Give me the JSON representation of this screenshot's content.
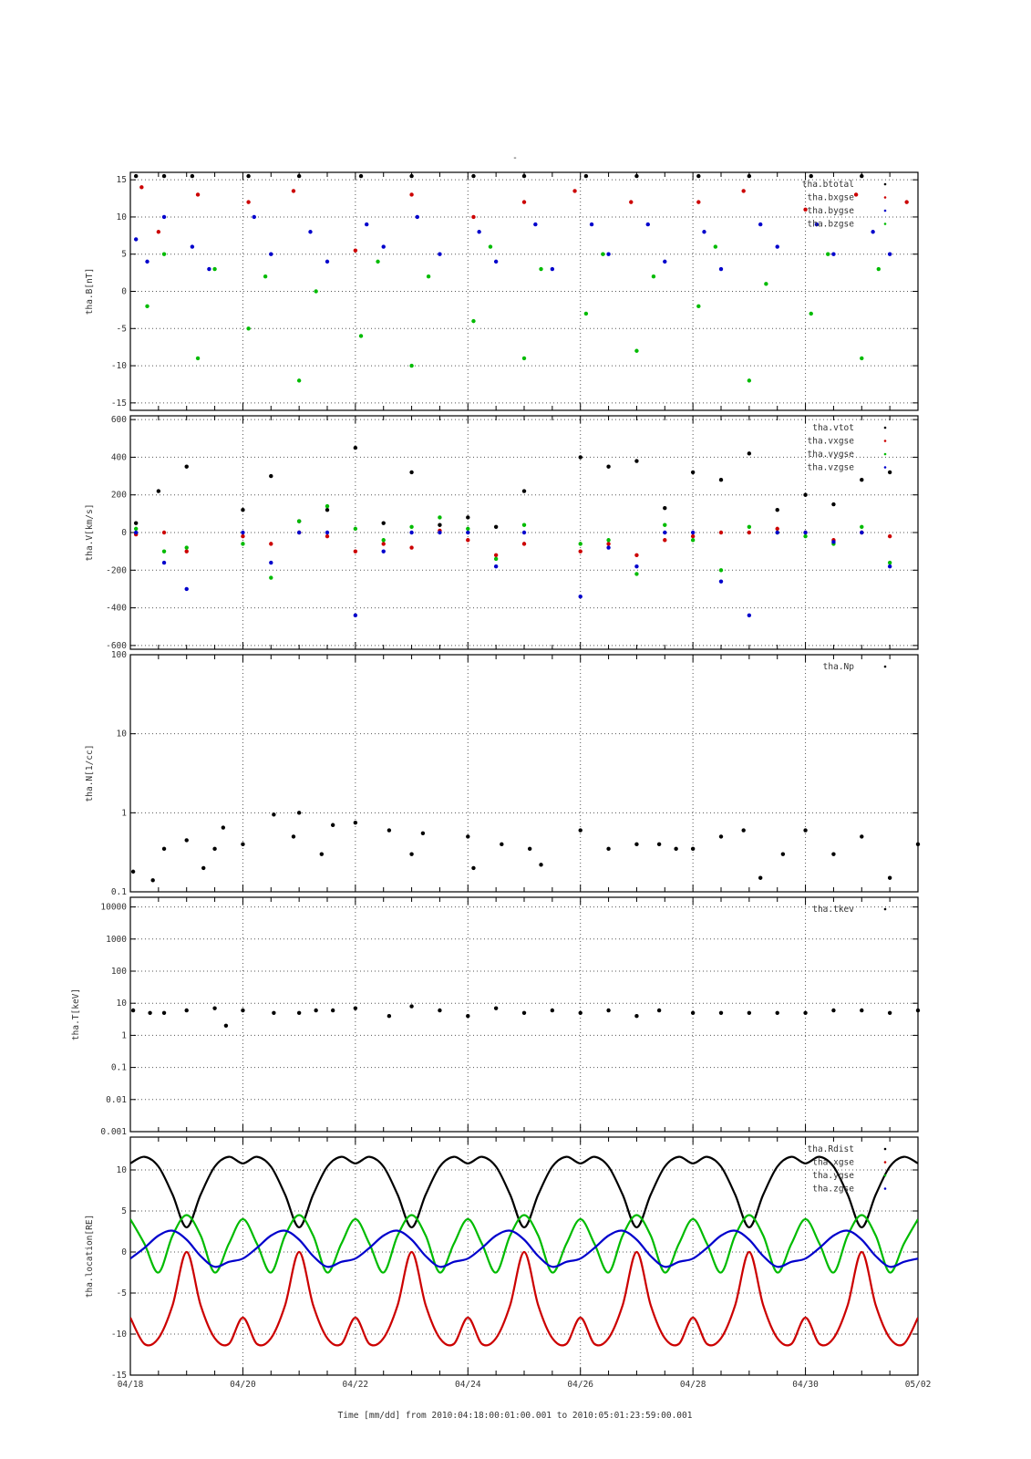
{
  "title": "-",
  "xaxis": {
    "label": "Time [mm/dd]  from 2010:04:18:00:01:00.001  to  2010:05:01:23:59:00.001",
    "range": [
      0,
      14
    ],
    "ticks": [
      {
        "v": 0,
        "label": "04/18"
      },
      {
        "v": 2,
        "label": "04/20"
      },
      {
        "v": 4,
        "label": "04/22"
      },
      {
        "v": 6,
        "label": "04/24"
      },
      {
        "v": 8,
        "label": "04/26"
      },
      {
        "v": 10,
        "label": "04/28"
      },
      {
        "v": 12,
        "label": "04/30"
      },
      {
        "v": 14,
        "label": "05/02"
      }
    ]
  },
  "chart_data": [
    {
      "type": "scatter",
      "ylabel": "tha.B[nT]",
      "ylim": [
        -16,
        16
      ],
      "scale": "linear",
      "yticks": [
        15,
        10,
        5,
        0,
        -5,
        -10,
        -15
      ],
      "legend_position": "top-right",
      "series": [
        {
          "name": "tha.btotal",
          "color": "#000000",
          "x": [
            0.1,
            0.6,
            1.1,
            2.1,
            3.0,
            4.1,
            5.0,
            6.1,
            7.0,
            8.1,
            9.0,
            10.1,
            11.0,
            12.1,
            13.0
          ],
          "y": [
            15.5,
            15.5,
            15.5,
            15.5,
            15.5,
            15.5,
            15.5,
            15.5,
            15.5,
            15.5,
            15.5,
            15.5,
            15.5,
            15.5,
            15.5
          ]
        },
        {
          "name": "tha.bxgse",
          "color": "#cc0000",
          "x": [
            0.2,
            0.5,
            1.2,
            2.1,
            2.9,
            4.0,
            5.0,
            6.1,
            7.0,
            7.9,
            8.9,
            10.1,
            10.9,
            12.0,
            12.9,
            13.8
          ],
          "y": [
            14.0,
            8.0,
            13.0,
            12.0,
            13.5,
            5.5,
            13.0,
            10.0,
            12.0,
            13.5,
            12.0,
            12.0,
            13.5,
            11.0,
            13.0,
            12.0
          ]
        },
        {
          "name": "tha.bygse",
          "color": "#0000cc",
          "x": [
            0.1,
            0.3,
            0.6,
            1.1,
            1.4,
            2.2,
            2.5,
            3.2,
            3.5,
            4.2,
            4.5,
            5.1,
            5.5,
            6.2,
            6.5,
            7.2,
            7.5,
            8.2,
            8.5,
            9.2,
            9.5,
            10.2,
            10.5,
            11.2,
            11.5,
            12.2,
            12.5,
            13.2,
            13.5
          ],
          "y": [
            7.0,
            4.0,
            10.0,
            6.0,
            3.0,
            10.0,
            5.0,
            8.0,
            4.0,
            9.0,
            6.0,
            10.0,
            5.0,
            8.0,
            4.0,
            9.0,
            3.0,
            9.0,
            5.0,
            9.0,
            4.0,
            8.0,
            3.0,
            9.0,
            6.0,
            9.0,
            5.0,
            8.0,
            5.0
          ]
        },
        {
          "name": "tha.bzgse",
          "color": "#00bb00",
          "x": [
            0.3,
            0.6,
            1.2,
            1.5,
            2.1,
            2.4,
            3.0,
            3.3,
            4.1,
            4.4,
            5.0,
            5.3,
            6.1,
            6.4,
            7.0,
            7.3,
            8.1,
            8.4,
            9.0,
            9.3,
            10.1,
            10.4,
            11.0,
            11.3,
            12.1,
            12.4,
            13.0,
            13.3
          ],
          "y": [
            -2.0,
            5.0,
            -9.0,
            3.0,
            -5.0,
            2.0,
            -12.0,
            0.0,
            -6.0,
            4.0,
            -10.0,
            2.0,
            -4.0,
            6.0,
            -9.0,
            3.0,
            -3.0,
            5.0,
            -8.0,
            2.0,
            -2.0,
            6.0,
            -12.0,
            1.0,
            -3.0,
            5.0,
            -9.0,
            3.0
          ]
        }
      ]
    },
    {
      "type": "scatter",
      "ylabel": "tha.V[km/s]",
      "ylim": [
        -620,
        620
      ],
      "scale": "linear",
      "yticks": [
        600,
        400,
        200,
        0,
        -200,
        -400,
        -600
      ],
      "legend_position": "top-right",
      "series": [
        {
          "name": "tha.vtot",
          "color": "#000000",
          "x": [
            0.1,
            0.5,
            1.0,
            2.0,
            2.5,
            3.0,
            3.5,
            4.0,
            4.5,
            5.0,
            5.5,
            6.0,
            6.5,
            7.0,
            8.0,
            8.5,
            9.0,
            9.5,
            10.0,
            10.5,
            11.0,
            11.5,
            12.0,
            12.5,
            13.0,
            13.5
          ],
          "y": [
            50,
            220,
            350,
            120,
            300,
            60,
            120,
            450,
            50,
            320,
            40,
            80,
            30,
            220,
            400,
            350,
            380,
            130,
            320,
            280,
            420,
            120,
            200,
            150,
            280,
            320
          ]
        },
        {
          "name": "tha.vxgse",
          "color": "#cc0000",
          "x": [
            0.1,
            0.6,
            1.0,
            2.0,
            2.5,
            3.0,
            3.5,
            4.0,
            4.5,
            5.0,
            5.5,
            6.0,
            6.5,
            7.0,
            8.0,
            8.5,
            9.0,
            9.5,
            10.0,
            10.5,
            11.0,
            11.5,
            12.0,
            12.5,
            13.0,
            13.5
          ],
          "y": [
            -10,
            0,
            -100,
            -20,
            -60,
            0,
            -20,
            -100,
            -60,
            -80,
            10,
            -40,
            -120,
            -60,
            -100,
            -60,
            -120,
            -40,
            -20,
            0,
            0,
            20,
            0,
            -40,
            0,
            -20
          ]
        },
        {
          "name": "tha.vygse",
          "color": "#00bb00",
          "x": [
            0.1,
            0.6,
            1.0,
            2.0,
            2.5,
            3.0,
            3.5,
            4.0,
            4.5,
            5.0,
            5.5,
            6.0,
            6.5,
            7.0,
            8.0,
            8.5,
            9.0,
            9.5,
            10.0,
            10.5,
            11.0,
            11.5,
            12.0,
            12.5,
            13.0,
            13.5
          ],
          "y": [
            20,
            -100,
            -80,
            -60,
            -240,
            60,
            140,
            20,
            -40,
            30,
            80,
            20,
            -140,
            40,
            -60,
            -40,
            -220,
            40,
            -40,
            -200,
            30,
            0,
            -20,
            -60,
            30,
            -160
          ]
        },
        {
          "name": "tha.vzgse",
          "color": "#0000cc",
          "x": [
            0.1,
            0.6,
            1.0,
            2.0,
            2.5,
            3.0,
            3.5,
            4.0,
            4.5,
            5.0,
            5.5,
            6.0,
            6.5,
            7.0,
            8.0,
            8.5,
            9.0,
            9.5,
            10.0,
            10.5,
            11.0,
            11.5,
            12.0,
            12.5,
            13.0,
            13.5
          ],
          "y": [
            0,
            -160,
            -300,
            0,
            -160,
            0,
            0,
            -440,
            -100,
            0,
            0,
            0,
            -180,
            0,
            -340,
            -80,
            -180,
            0,
            0,
            -260,
            -440,
            0,
            0,
            -50,
            0,
            -180
          ]
        }
      ]
    },
    {
      "type": "scatter",
      "ylabel": "tha.N[1/cc]",
      "ylim": [
        0.1,
        100
      ],
      "scale": "log",
      "yticks": [
        100,
        10,
        1,
        0.1
      ],
      "legend_position": "top-right",
      "series": [
        {
          "name": "tha.Np",
          "color": "#000000",
          "x": [
            0.05,
            0.4,
            0.6,
            1.0,
            1.3,
            1.5,
            1.65,
            2.0,
            2.55,
            2.9,
            3.0,
            3.4,
            3.6,
            4.0,
            4.6,
            5.0,
            5.2,
            6.0,
            6.1,
            6.6,
            7.1,
            7.3,
            8.0,
            8.5,
            9.0,
            9.4,
            9.7,
            10.0,
            10.5,
            10.9,
            11.2,
            11.6,
            12.0,
            12.5,
            13.0,
            13.5,
            14.0
          ],
          "y": [
            0.18,
            0.14,
            0.35,
            0.45,
            0.2,
            0.35,
            0.65,
            0.4,
            0.95,
            0.5,
            1.0,
            0.3,
            0.7,
            0.75,
            0.6,
            0.3,
            0.55,
            0.5,
            0.2,
            0.4,
            0.35,
            0.22,
            0.6,
            0.35,
            0.4,
            0.4,
            0.35,
            0.35,
            0.5,
            0.6,
            0.15,
            0.3,
            0.6,
            0.3,
            0.5,
            0.15,
            0.4
          ]
        }
      ]
    },
    {
      "type": "scatter",
      "ylabel": "tha.T[keV]",
      "ylim": [
        0.001,
        20000
      ],
      "scale": "log",
      "yticks": [
        10000,
        1000,
        100,
        10,
        1,
        0.1,
        0.01,
        0.001
      ],
      "legend_position": "top-right",
      "series": [
        {
          "name": "tha.tkev",
          "color": "#000000",
          "x": [
            0.05,
            0.35,
            0.6,
            1.0,
            1.5,
            1.7,
            2.0,
            2.55,
            3.0,
            3.3,
            3.6,
            4.0,
            4.6,
            5.0,
            5.5,
            6.0,
            6.5,
            7.0,
            7.5,
            8.0,
            8.5,
            9.0,
            9.4,
            10.0,
            10.5,
            11.0,
            11.5,
            12.0,
            12.5,
            13.0,
            13.5,
            14.0
          ],
          "y": [
            6,
            5,
            5,
            6,
            7,
            2,
            6,
            5,
            5,
            6,
            6,
            7,
            4,
            8,
            6,
            4,
            7,
            5,
            6,
            5,
            6,
            4,
            6,
            5,
            5,
            5,
            5,
            5,
            6,
            6,
            5,
            6
          ]
        }
      ]
    },
    {
      "type": "line",
      "ylabel": "tha.location[RE]",
      "ylim": [
        -15,
        14
      ],
      "scale": "linear",
      "yticks": [
        10,
        5,
        0,
        -5,
        -10,
        -15
      ],
      "legend_position": "top-right",
      "series": [
        {
          "name": "tha.Rdist",
          "color": "#000000",
          "x": [
            0,
            0.25,
            0.5,
            0.75,
            1.0,
            1.25,
            1.5,
            1.75,
            2.0
          ],
          "y": [
            10.8,
            11.6,
            10.4,
            7.0,
            3.0,
            7.0,
            10.4,
            11.6,
            10.8
          ]
        },
        {
          "name": "tha.xgse",
          "color": "#cc0000",
          "x": [
            0,
            0.25,
            0.5,
            0.75,
            1.0,
            1.25,
            1.5,
            1.75,
            2.0
          ],
          "y": [
            -8.0,
            -11.2,
            -10.5,
            -6.5,
            0.0,
            -6.5,
            -10.5,
            -11.2,
            -8.0
          ]
        },
        {
          "name": "tha.ygse",
          "color": "#00bb00",
          "x": [
            0,
            0.25,
            0.5,
            0.75,
            1.0,
            1.25,
            1.5,
            1.75,
            2.0
          ],
          "y": [
            4.0,
            1.0,
            -2.5,
            2.0,
            4.5,
            2.0,
            -2.5,
            1.0,
            4.0
          ]
        },
        {
          "name": "tha.zgse",
          "color": "#0000cc",
          "x": [
            0,
            0.25,
            0.5,
            0.75,
            1.0,
            1.25,
            1.5,
            1.75,
            2.0
          ],
          "y": [
            -0.8,
            0.5,
            2.0,
            2.6,
            1.5,
            -0.5,
            -1.8,
            -1.2,
            -0.8
          ]
        }
      ]
    }
  ]
}
